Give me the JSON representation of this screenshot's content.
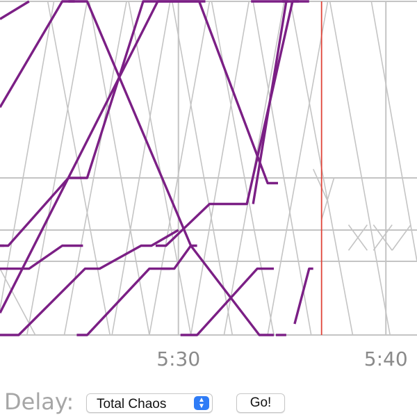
{
  "chart_data": {
    "type": "line",
    "title": "",
    "xlabel": "",
    "ylabel": "",
    "x_unit": "minutes past 5:00",
    "x_ticks": [
      {
        "value": 30,
        "label": "5:30"
      },
      {
        "value": 40,
        "label": "5:40"
      }
    ],
    "xlim": [
      21.4,
      41.5
    ],
    "y_stations": [
      0,
      1,
      2,
      3,
      4
    ],
    "ylim": [
      -0.04,
      4
    ],
    "grid": true,
    "current_time": 36.9,
    "colors": {
      "train": "#7b1f85",
      "grid": "#c4c4c4",
      "now": "#e0453a"
    },
    "schedule_lines": [
      [
        [
          21.4,
          0.35
        ],
        [
          24,
          4
        ]
      ],
      [
        [
          22.7,
          0
        ],
        [
          25.6,
          4
        ]
      ],
      [
        [
          24.5,
          0
        ],
        [
          27.5,
          4
        ]
      ],
      [
        [
          26.8,
          0
        ],
        [
          29.6,
          4
        ]
      ],
      [
        [
          28.6,
          0
        ],
        [
          31.5,
          4
        ]
      ],
      [
        [
          30.6,
          0
        ],
        [
          33.4,
          4
        ]
      ],
      [
        [
          32.2,
          0
        ],
        [
          35.1,
          4
        ]
      ],
      [
        [
          34.3,
          0
        ],
        [
          37.2,
          4
        ]
      ],
      [
        [
          21.4,
          0.9
        ],
        [
          23.1,
          0
        ]
      ],
      [
        [
          23.7,
          4
        ],
        [
          26.7,
          0
        ]
      ],
      [
        [
          25.7,
          4
        ],
        [
          28.6,
          0
        ]
      ],
      [
        [
          27.6,
          4
        ],
        [
          30.6,
          0
        ]
      ],
      [
        [
          29.7,
          4
        ],
        [
          32.6,
          0
        ]
      ],
      [
        [
          31.6,
          4
        ],
        [
          34.6,
          0
        ]
      ],
      [
        [
          33.6,
          4
        ],
        [
          36.4,
          0
        ]
      ],
      [
        [
          35.4,
          4
        ],
        [
          38.4,
          0
        ]
      ],
      [
        [
          37.3,
          4
        ],
        [
          40.2,
          0
        ]
      ],
      [
        [
          39.3,
          4
        ],
        [
          41.5,
          1
        ]
      ],
      [
        [
          38.2,
          1.35
        ],
        [
          39.1,
          2.1
        ]
      ],
      [
        [
          39.4,
          1.35
        ],
        [
          40.3,
          2.1
        ]
      ],
      [
        [
          40.3,
          1.35
        ],
        [
          41.2,
          2.1
        ]
      ],
      [
        [
          38.2,
          2.1
        ],
        [
          39.1,
          1.35
        ]
      ],
      [
        [
          39.4,
          2.1
        ],
        [
          40.3,
          1.35
        ]
      ],
      [
        [
          36.9,
          2.2
        ],
        [
          37.5,
          3
        ]
      ],
      [
        [
          36.5,
          3.05
        ],
        [
          37.2,
          2.55
        ]
      ]
    ],
    "series": [
      {
        "points": [
          [
            21.4,
            3.4
          ],
          [
            24.4,
            4
          ],
          [
            25,
            4
          ]
        ]
      },
      {
        "points": [
          [
            24.7,
            4
          ],
          [
            25.6,
            4
          ],
          [
            30.6,
            1.5
          ],
          [
            33.9,
            0
          ],
          [
            34.6,
            0
          ]
        ]
      },
      {
        "points": [
          [
            21.4,
            1.5
          ],
          [
            21.8,
            1.5
          ],
          [
            24.7,
            3
          ],
          [
            25.6,
            3
          ],
          [
            28.3,
            4
          ],
          [
            31.3,
            4
          ]
        ]
      },
      {
        "points": [
          [
            21.4,
            0.3
          ],
          [
            29,
            4
          ],
          [
            30,
            4
          ]
        ]
      },
      {
        "points": [
          [
            30,
            4
          ],
          [
            31,
            4
          ],
          [
            34.3,
            2.9
          ],
          [
            34.8,
            2.9
          ]
        ]
      },
      {
        "points": [
          [
            33.5,
            4
          ],
          [
            34.1,
            4
          ],
          [
            34.6,
            4
          ],
          [
            35.3,
            4
          ]
        ]
      },
      {
        "points": [
          [
            35,
            4
          ],
          [
            35.8,
            4
          ]
        ]
      },
      {
        "points": [
          [
            21.4,
            3.9
          ],
          [
            22.8,
            4
          ]
        ]
      },
      {
        "points": [
          [
            21.4,
            1.5
          ],
          [
            21.6,
            1.5
          ]
        ]
      },
      {
        "points": [
          [
            21.4,
            0.9
          ],
          [
            22.8,
            0.9
          ],
          [
            24.4,
            1.5
          ],
          [
            25.4,
            1.5
          ]
        ]
      },
      {
        "points": [
          [
            21.4,
            0
          ],
          [
            22.3,
            0
          ],
          [
            25.5,
            0.9
          ],
          [
            26.2,
            0.9
          ],
          [
            28.2,
            1.5
          ],
          [
            28.7,
            1.5
          ],
          [
            30,
            2
          ]
        ]
      },
      {
        "points": [
          [
            25.1,
            0
          ],
          [
            25.6,
            0
          ],
          [
            28.6,
            0.9
          ],
          [
            29.8,
            0.9
          ],
          [
            30.6,
            1.5
          ],
          [
            30.9,
            1.5
          ]
        ]
      },
      {
        "points": [
          [
            28.3,
            0.35
          ],
          [
            28.3,
            0.35
          ]
        ]
      },
      {
        "points": [
          [
            28.9,
            1.5
          ],
          [
            29.4,
            1.5
          ],
          [
            31.5,
            2.5
          ],
          [
            32.6,
            2.5
          ],
          [
            33.3,
            2.5
          ],
          [
            35.5,
            4
          ],
          [
            36.3,
            4
          ]
        ]
      },
      {
        "points": [
          [
            33.6,
            2.5
          ],
          [
            35.2,
            4
          ]
        ]
      },
      {
        "points": [
          [
            29.2,
            0.9
          ],
          [
            29.6,
            0.9
          ]
        ]
      },
      {
        "points": [
          [
            30.1,
            0
          ],
          [
            30.9,
            0
          ],
          [
            33.8,
            0.9
          ],
          [
            34.6,
            0.9
          ]
        ]
      },
      {
        "points": [
          [
            34.7,
            0
          ],
          [
            35.2,
            0
          ]
        ]
      },
      {
        "points": [
          [
            35.6,
            0.15
          ],
          [
            36.3,
            0.9
          ],
          [
            36.5,
            0.9
          ]
        ]
      }
    ]
  },
  "controls": {
    "delay_label": "Delay:",
    "delay_selected": "Total Chaos",
    "go_label": "Go!"
  },
  "icons": {
    "select_chevron": "updown-chevron-icon"
  }
}
